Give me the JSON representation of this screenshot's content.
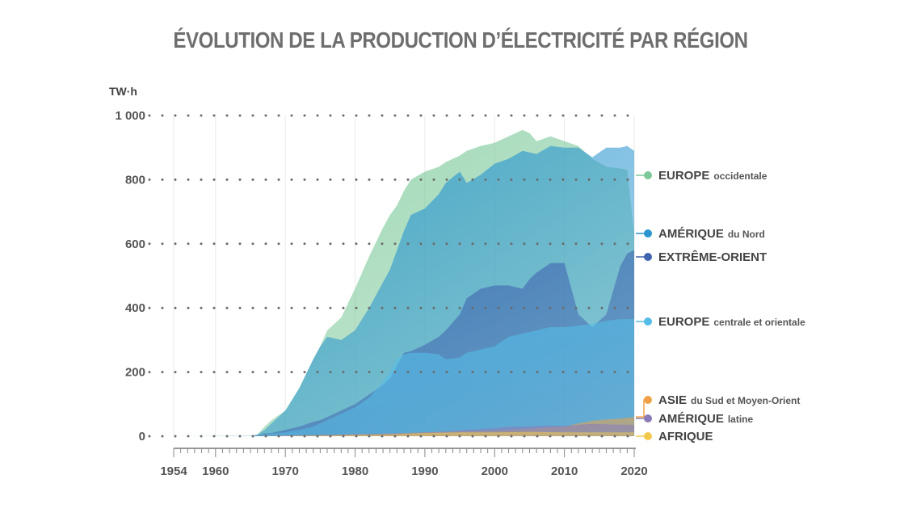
{
  "title": "ÉVOLUTION DE LA PRODUCTION D’ÉLECTRICITÉ PAR RÉGION",
  "chart_data": {
    "type": "area",
    "title": "ÉVOLUTION DE LA PRODUCTION D’ÉLECTRICITÉ PAR RÉGION",
    "ylabel": "TW·h",
    "xlabel": "",
    "xlim": [
      1954,
      2020
    ],
    "ylim": [
      0,
      1000
    ],
    "grid": "dotted horizontal, faint vertical",
    "x_ticks": [
      "1954",
      "1960",
      "1970",
      "1980",
      "1990",
      "2000",
      "2010",
      "2020"
    ],
    "y_ticks": [
      "0",
      "200",
      "400",
      "600",
      "800",
      "1 000"
    ],
    "legend_position": "right",
    "series": [
      {
        "name_main": "EUROPE",
        "name_sub": "occidentale",
        "color": "#7cc99a",
        "points": [
          [
            1954,
            0
          ],
          [
            1965,
            1
          ],
          [
            1966,
            5
          ],
          [
            1967,
            30
          ],
          [
            1968,
            50
          ],
          [
            1970,
            80
          ],
          [
            1972,
            150
          ],
          [
            1974,
            240
          ],
          [
            1975,
            280
          ],
          [
            1976,
            330
          ],
          [
            1978,
            370
          ],
          [
            1980,
            460
          ],
          [
            1982,
            560
          ],
          [
            1984,
            650
          ],
          [
            1985,
            690
          ],
          [
            1986,
            720
          ],
          [
            1987,
            765
          ],
          [
            1988,
            800
          ],
          [
            1990,
            825
          ],
          [
            1992,
            840
          ],
          [
            1993,
            855
          ],
          [
            1995,
            875
          ],
          [
            1996,
            890
          ],
          [
            1998,
            905
          ],
          [
            2000,
            915
          ],
          [
            2002,
            935
          ],
          [
            2004,
            955
          ],
          [
            2005,
            945
          ],
          [
            2006,
            920
          ],
          [
            2008,
            935
          ],
          [
            2010,
            920
          ],
          [
            2012,
            905
          ],
          [
            2014,
            865
          ],
          [
            2016,
            840
          ],
          [
            2018,
            835
          ],
          [
            2019,
            830
          ],
          [
            2020,
            630
          ]
        ]
      },
      {
        "name_main": "AMÉRIQUE",
        "name_sub": "du Nord",
        "color": "#2a95cf",
        "points": [
          [
            1954,
            0
          ],
          [
            1965,
            1
          ],
          [
            1966,
            5
          ],
          [
            1967,
            20
          ],
          [
            1968,
            40
          ],
          [
            1970,
            80
          ],
          [
            1972,
            150
          ],
          [
            1974,
            240
          ],
          [
            1975,
            280
          ],
          [
            1976,
            310
          ],
          [
            1978,
            300
          ],
          [
            1980,
            330
          ],
          [
            1982,
            400
          ],
          [
            1984,
            480
          ],
          [
            1985,
            520
          ],
          [
            1986,
            580
          ],
          [
            1987,
            640
          ],
          [
            1988,
            690
          ],
          [
            1990,
            710
          ],
          [
            1992,
            755
          ],
          [
            1993,
            790
          ],
          [
            1995,
            825
          ],
          [
            1996,
            790
          ],
          [
            1998,
            815
          ],
          [
            2000,
            850
          ],
          [
            2002,
            865
          ],
          [
            2004,
            890
          ],
          [
            2005,
            885
          ],
          [
            2006,
            880
          ],
          [
            2008,
            905
          ],
          [
            2010,
            900
          ],
          [
            2012,
            900
          ],
          [
            2014,
            870
          ],
          [
            2016,
            900
          ],
          [
            2018,
            900
          ],
          [
            2019,
            905
          ],
          [
            2020,
            890
          ]
        ]
      },
      {
        "name_main": "EXTRÊME-ORIENT",
        "name_sub": "",
        "color": "#3f64b0",
        "points": [
          [
            1954,
            0
          ],
          [
            1965,
            0
          ],
          [
            1966,
            3
          ],
          [
            1967,
            8
          ],
          [
            1968,
            10
          ],
          [
            1970,
            20
          ],
          [
            1972,
            30
          ],
          [
            1974,
            45
          ],
          [
            1975,
            50
          ],
          [
            1976,
            60
          ],
          [
            1978,
            80
          ],
          [
            1980,
            100
          ],
          [
            1982,
            130
          ],
          [
            1984,
            160
          ],
          [
            1985,
            180
          ],
          [
            1986,
            220
          ],
          [
            1987,
            260
          ],
          [
            1988,
            265
          ],
          [
            1990,
            285
          ],
          [
            1992,
            310
          ],
          [
            1993,
            330
          ],
          [
            1995,
            380
          ],
          [
            1996,
            430
          ],
          [
            1998,
            460
          ],
          [
            2000,
            470
          ],
          [
            2002,
            470
          ],
          [
            2004,
            460
          ],
          [
            2005,
            490
          ],
          [
            2006,
            510
          ],
          [
            2008,
            540
          ],
          [
            2010,
            540
          ],
          [
            2012,
            380
          ],
          [
            2014,
            340
          ],
          [
            2016,
            380
          ],
          [
            2018,
            530
          ],
          [
            2019,
            570
          ],
          [
            2020,
            580
          ]
        ]
      },
      {
        "name_main": "EUROPE",
        "name_sub": "centrale et orientale",
        "color": "#55bde8",
        "points": [
          [
            1954,
            0
          ],
          [
            1965,
            0
          ],
          [
            1966,
            2
          ],
          [
            1967,
            5
          ],
          [
            1968,
            8
          ],
          [
            1970,
            12
          ],
          [
            1972,
            20
          ],
          [
            1974,
            30
          ],
          [
            1975,
            40
          ],
          [
            1976,
            50
          ],
          [
            1978,
            70
          ],
          [
            1980,
            90
          ],
          [
            1982,
            120
          ],
          [
            1984,
            170
          ],
          [
            1985,
            200
          ],
          [
            1986,
            240
          ],
          [
            1987,
            255
          ],
          [
            1988,
            260
          ],
          [
            1990,
            260
          ],
          [
            1992,
            255
          ],
          [
            1993,
            240
          ],
          [
            1995,
            245
          ],
          [
            1996,
            260
          ],
          [
            1998,
            270
          ],
          [
            2000,
            280
          ],
          [
            2002,
            310
          ],
          [
            2004,
            320
          ],
          [
            2005,
            325
          ],
          [
            2006,
            330
          ],
          [
            2008,
            340
          ],
          [
            2010,
            340
          ],
          [
            2012,
            345
          ],
          [
            2014,
            350
          ],
          [
            2016,
            360
          ],
          [
            2018,
            365
          ],
          [
            2019,
            365
          ],
          [
            2020,
            365
          ]
        ]
      },
      {
        "name_main": "ASIE",
        "name_sub": "du Sud et Moyen-Orient",
        "color": "#f0a145",
        "points": [
          [
            1954,
            0
          ],
          [
            1965,
            0
          ],
          [
            1970,
            2
          ],
          [
            1975,
            4
          ],
          [
            1980,
            6
          ],
          [
            1985,
            8
          ],
          [
            1990,
            12
          ],
          [
            1995,
            15
          ],
          [
            2000,
            18
          ],
          [
            2002,
            20
          ],
          [
            2004,
            22
          ],
          [
            2006,
            25
          ],
          [
            2008,
            28
          ],
          [
            2010,
            30
          ],
          [
            2012,
            40
          ],
          [
            2014,
            48
          ],
          [
            2016,
            52
          ],
          [
            2018,
            55
          ],
          [
            2020,
            60
          ]
        ]
      },
      {
        "name_main": "AMÉRIQUE",
        "name_sub": "latine",
        "color": "#8a7ab8",
        "points": [
          [
            1954,
            0
          ],
          [
            1965,
            0
          ],
          [
            1970,
            2
          ],
          [
            1975,
            4
          ],
          [
            1980,
            6
          ],
          [
            1985,
            8
          ],
          [
            1990,
            12
          ],
          [
            1993,
            15
          ],
          [
            1996,
            20
          ],
          [
            2000,
            25
          ],
          [
            2002,
            30
          ],
          [
            2004,
            30
          ],
          [
            2006,
            32
          ],
          [
            2008,
            33
          ],
          [
            2010,
            32
          ],
          [
            2012,
            36
          ],
          [
            2014,
            38
          ],
          [
            2016,
            37
          ],
          [
            2018,
            36
          ],
          [
            2020,
            36
          ]
        ]
      },
      {
        "name_main": "AFRIQUE",
        "name_sub": "",
        "color": "#f2c94c",
        "points": [
          [
            1954,
            0
          ],
          [
            1965,
            0
          ],
          [
            1970,
            1
          ],
          [
            1975,
            2
          ],
          [
            1980,
            4
          ],
          [
            1985,
            6
          ],
          [
            1990,
            10
          ],
          [
            1995,
            12
          ],
          [
            2000,
            12
          ],
          [
            2005,
            13
          ],
          [
            2010,
            12
          ],
          [
            2015,
            12
          ],
          [
            2020,
            12
          ]
        ]
      }
    ]
  }
}
